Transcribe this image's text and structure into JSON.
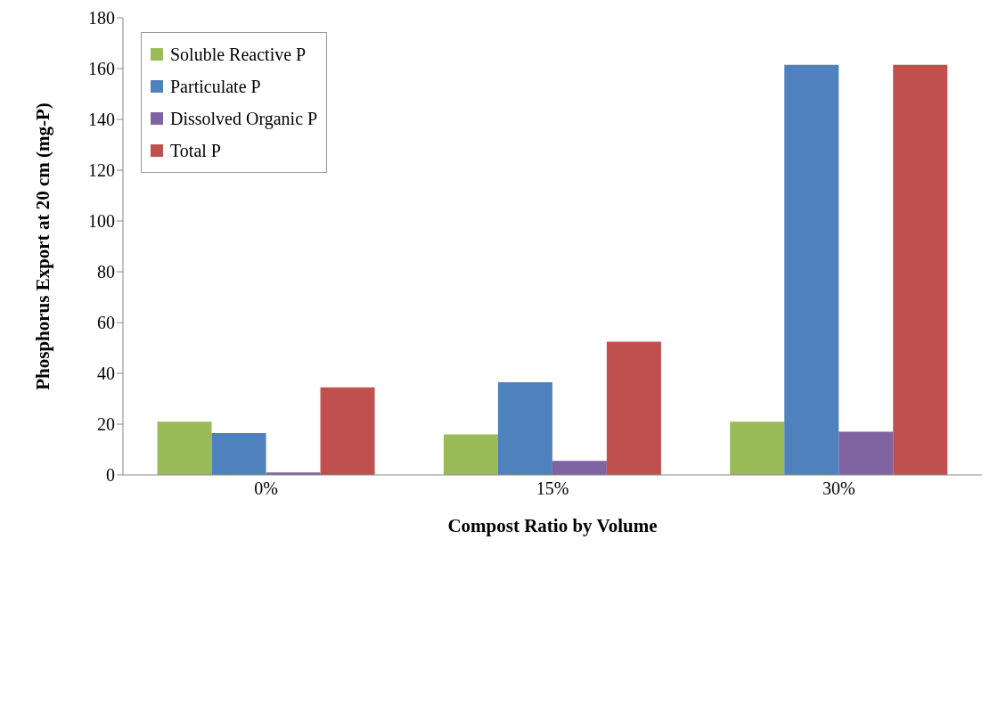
{
  "chart_data": {
    "type": "bar",
    "xlabel": "Compost Ratio by Volume",
    "ylabel": "Phosphorus Export at 20 cm (mg-P)",
    "categories": [
      "0%",
      "15%",
      "30%"
    ],
    "series": [
      {
        "name": "Soluble Reactive P",
        "color": "#9bbb59",
        "values": [
          21,
          16,
          21
        ]
      },
      {
        "name": "Particulate P",
        "color": "#4f81bd",
        "values": [
          16.5,
          36.5,
          161.5
        ]
      },
      {
        "name": "Dissolved Organic P",
        "color": "#8064a2",
        "values": [
          1,
          5.5,
          17
        ]
      },
      {
        "name": "Total P",
        "color": "#c0504d",
        "values": [
          34.5,
          52.5,
          161.5
        ]
      }
    ],
    "ylim": [
      0,
      180
    ],
    "yticks": [
      0,
      20,
      40,
      60,
      80,
      100,
      120,
      140,
      160,
      180
    ],
    "grid": false,
    "legend": "top left"
  }
}
